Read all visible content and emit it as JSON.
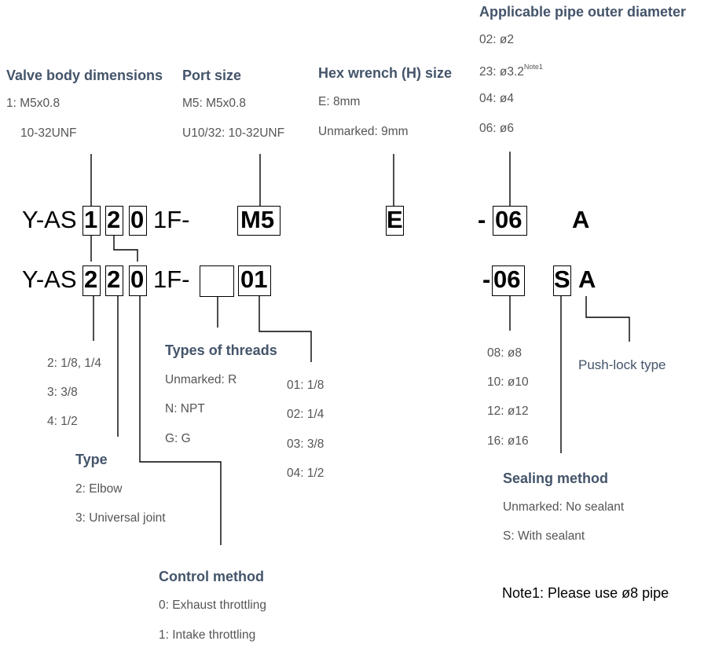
{
  "code_rows": [
    {
      "prefix": "Y-AS",
      "body": "1",
      "type": "2",
      "control": "0",
      "mid": "1F-",
      "port": "M5",
      "hex": "E",
      "dash": "-",
      "pipe": "06",
      "lock": "A"
    },
    {
      "prefix": "Y-AS",
      "body": "2",
      "type": "2",
      "control": "0",
      "mid": "1F-",
      "thread_blank": "",
      "port": "01",
      "dash": "-",
      "pipe": "06",
      "seal": "S",
      "lock": "A"
    }
  ],
  "valve_body": {
    "title": "Valve body dimensions",
    "options": [
      "1: M5x0.8",
      "10-32UNF"
    ],
    "options_lower": [
      "2: 1/8, 1/4",
      "3: 3/8",
      "4: 1/2"
    ]
  },
  "port_size": {
    "title": "Port size",
    "options": [
      "M5: M5x0.8",
      "U10/32: 10-32UNF"
    ],
    "options_lower": [
      "01: 1/8",
      "02: 1/4",
      "03: 3/8",
      "04: 1/2"
    ]
  },
  "hex_wrench": {
    "title": "Hex wrench (H) size",
    "options": [
      "E: 8mm",
      "Unmarked: 9mm"
    ]
  },
  "pipe_diameter": {
    "title": "Applicable pipe outer diameter",
    "options": [
      "02: ø2",
      "23: ø3.2",
      "04: ø4",
      "06: ø6"
    ],
    "note_ref": "Note1",
    "options_lower": [
      "08: ø8",
      "10: ø10",
      "12: ø12",
      "16: ø16"
    ]
  },
  "threads": {
    "title": "Types of threads",
    "options": [
      "Unmarked: R",
      "N: NPT",
      "G: G"
    ]
  },
  "type": {
    "title": "Type",
    "options": [
      "2: Elbow",
      "3: Universal joint"
    ]
  },
  "control": {
    "title": "Control method",
    "options": [
      "0: Exhaust throttling",
      "1: Intake throttling"
    ]
  },
  "sealing": {
    "title": "Sealing method",
    "options": [
      "Unmarked: No sealant",
      "S: With sealant"
    ]
  },
  "push_lock": {
    "title": "Push-lock type"
  },
  "note": "Note1: Please use ø8 pipe"
}
